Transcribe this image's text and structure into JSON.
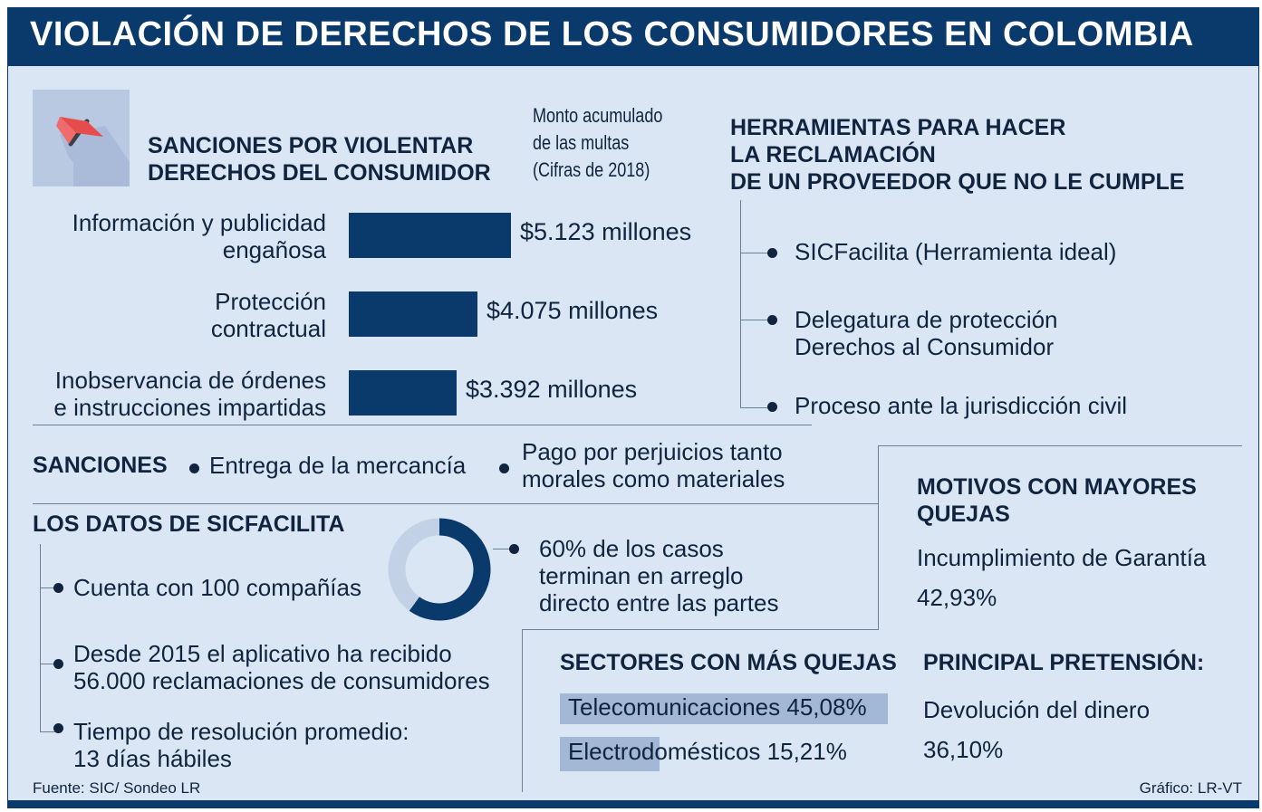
{
  "title": "VIOLACIÓN DE DERECHOS DE LOS CONSUMIDORES EN COLOMBIA",
  "colors": {
    "navy": "#0a3a6b",
    "background": "#dbe6f4",
    "donut_light": "#c3d1e6",
    "highlight": "#a3b7d6"
  },
  "icon": "flag-icon",
  "sanciones_chart": {
    "heading": [
      "SANCIONES POR VIOLENTAR",
      "DERECHOS DEL CONSUMIDOR"
    ],
    "subtitle": [
      "Monto acumulado",
      "de las multas",
      "(Cifras de 2018)"
    ]
  },
  "chart_data": {
    "type": "bar",
    "orientation": "horizontal",
    "unit": "millones",
    "categories": [
      [
        "Información y publicidad",
        "engañosa"
      ],
      [
        "Protección",
        "contractual"
      ],
      [
        "Inobservancia de órdenes",
        "e instrucciones impartidas"
      ]
    ],
    "values": [
      5123,
      4075,
      3392
    ],
    "value_labels": [
      "$5.123 millones",
      "$4.075 millones",
      "$3.392 millones"
    ]
  },
  "herramientas": {
    "heading": [
      "HERRAMIENTAS PARA HACER",
      "LA RECLAMACIÓN",
      "DE UN PROVEEDOR QUE NO LE CUMPLE"
    ],
    "items": [
      [
        "SICFacilita (Herramienta ideal)"
      ],
      [
        "Delegatura de protección",
        "Derechos al Consumidor"
      ],
      [
        "Proceso ante la jurisdicción civil"
      ]
    ]
  },
  "sanciones": {
    "label": "SANCIONES",
    "items": [
      [
        "Entrega de la mercancía"
      ],
      [
        "Pago por perjuicios tanto",
        "morales como materiales"
      ]
    ]
  },
  "datos": {
    "heading": "LOS DATOS DE SICFACILITA",
    "items": [
      [
        "Cuenta con 100 compañías"
      ],
      [
        "Desde 2015 el aplicativo ha recibido",
        "56.000 reclamaciones de consumidores"
      ],
      [
        "Tiempo de resolución promedio:",
        "13 días hábiles"
      ]
    ],
    "donut_percent": 60,
    "donut_text": [
      "60% de los casos",
      "terminan en arreglo",
      "directo entre las partes"
    ]
  },
  "motivos": {
    "heading": [
      "MOTIVOS CON MAYORES",
      "QUEJAS"
    ],
    "item": "Incumplimiento de Garantía",
    "value": "42,93%"
  },
  "sectores": {
    "heading": "SECTORES CON MÁS QUEJAS",
    "items": [
      {
        "label": "Telecomunicaciones",
        "value": "45,08%",
        "percent": 45.08
      },
      {
        "label": "Electrodomésticos",
        "value": "15,21%",
        "percent": 15.21
      }
    ]
  },
  "pretension": {
    "heading": "PRINCIPAL PRETENSIÓN:",
    "item": "Devolución del dinero",
    "value": "36,10%"
  },
  "source": "Fuente: SIC/ Sondeo LR",
  "credit": "Gráfico: LR-VT"
}
